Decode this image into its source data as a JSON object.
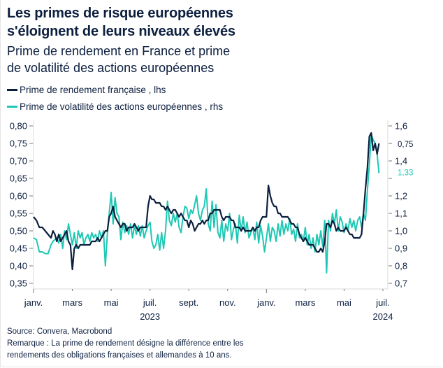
{
  "header": {
    "title_line1": "Les primes de risque européennes",
    "title_line2": "s'éloignent de leurs niveaux élevés",
    "subtitle_line1": "Prime de rendement en France et prime",
    "subtitle_line2": "de volatilité des actions européennes"
  },
  "footer": {
    "source": "Source: Convera, Macrobond",
    "note_line1": "Remarque : La prime de rendement désigne la différence entre les",
    "note_line2": "rendements des obligations françaises et allemandes à 10 ans."
  },
  "colors": {
    "navy": "#0c1f3f",
    "teal": "#1ec8b4"
  },
  "chart_data": {
    "type": "line",
    "title": "Les primes de risque européennes s'éloignent de leurs niveaux élevés",
    "subtitle": "Prime de rendement en France et prime de volatilité des actions européennes",
    "xlabel": "",
    "x_unit": "months since January 2023",
    "x_range": [
      0,
      18.2
    ],
    "x_ticks": [
      {
        "pos": 0,
        "label": "janv."
      },
      {
        "pos": 2,
        "label": "mars"
      },
      {
        "pos": 4,
        "label": "mai"
      },
      {
        "pos": 6,
        "label": "juil."
      },
      {
        "pos": 8,
        "label": "sept."
      },
      {
        "pos": 10,
        "label": "nov."
      },
      {
        "pos": 12,
        "label": "janv."
      },
      {
        "pos": 14,
        "label": "mars"
      },
      {
        "pos": 16,
        "label": "mai"
      },
      {
        "pos": 18,
        "label": "juil."
      }
    ],
    "year_labels": [
      {
        "pos": 6,
        "label": "2023"
      },
      {
        "pos": 18,
        "label": "2024"
      }
    ],
    "y_left": {
      "label": "lhs",
      "range": [
        0.35,
        0.8
      ],
      "ticks": [
        "0,80",
        "0,75",
        "0,70",
        "0,65",
        "0,60",
        "0,55",
        "0,50",
        "0,45",
        "0,40",
        "0,35"
      ],
      "tick_values": [
        0.8,
        0.75,
        0.7,
        0.65,
        0.6,
        0.55,
        0.5,
        0.45,
        0.4,
        0.35
      ]
    },
    "y_right": {
      "label": "rhs",
      "range": [
        0.7,
        1.6
      ],
      "ticks": [
        "1,6",
        "",
        "1,4",
        "",
        "1,2",
        "1,1",
        "1,0",
        "0,9",
        "0,8",
        "0,7"
      ],
      "tick_values": [
        1.6,
        1.5,
        1.4,
        1.3,
        1.2,
        1.1,
        1.0,
        0.9,
        0.8,
        0.7
      ]
    },
    "grid": false,
    "legend_position": "top-left",
    "series": [
      {
        "name": "Prime de rendement française , lhs",
        "axis": "left",
        "color": "#0c1f3f",
        "last_value_label": "0,75",
        "x": [
          0,
          0.15,
          0.3,
          0.45,
          0.6,
          0.75,
          0.9,
          1.0,
          1.1,
          1.2,
          1.3,
          1.4,
          1.5,
          1.6,
          1.7,
          1.8,
          1.9,
          2.0,
          2.1,
          2.2,
          2.3,
          2.4,
          2.5,
          2.6,
          2.7,
          2.8,
          2.9,
          3.0,
          3.1,
          3.2,
          3.3,
          3.4,
          3.5,
          3.6,
          3.7,
          3.8,
          3.9,
          4.0,
          4.1,
          4.2,
          4.3,
          4.4,
          4.5,
          4.6,
          4.7,
          4.8,
          4.9,
          5.0,
          5.1,
          5.2,
          5.3,
          5.4,
          5.5,
          5.6,
          5.7,
          5.8,
          5.9,
          6.0,
          6.1,
          6.2,
          6.3,
          6.4,
          6.5,
          6.6,
          6.7,
          6.8,
          6.9,
          7.0,
          7.1,
          7.2,
          7.3,
          7.4,
          7.5,
          7.6,
          7.7,
          7.8,
          7.9,
          8.0,
          8.1,
          8.2,
          8.3,
          8.4,
          8.5,
          8.6,
          8.7,
          8.8,
          8.9,
          9.0,
          9.1,
          9.2,
          9.3,
          9.4,
          9.5,
          9.6,
          9.7,
          9.8,
          9.9,
          10.0,
          10.1,
          10.2,
          10.3,
          10.4,
          10.5,
          10.6,
          10.7,
          10.8,
          10.9,
          11.0,
          11.1,
          11.2,
          11.3,
          11.4,
          11.5,
          11.6,
          11.7,
          11.8,
          11.9,
          12.0,
          12.1,
          12.2,
          12.3,
          12.4,
          12.5,
          12.6,
          12.7,
          12.8,
          12.9,
          13.0,
          13.1,
          13.2,
          13.3,
          13.4,
          13.5,
          13.6,
          13.7,
          13.8,
          13.9,
          14.0,
          14.1,
          14.2,
          14.3,
          14.4,
          14.5,
          14.6,
          14.7,
          14.8,
          14.9,
          15.0,
          15.1,
          15.2,
          15.3,
          15.4,
          15.5,
          15.6,
          15.7,
          15.8,
          15.9,
          16.0,
          16.1,
          16.2,
          16.3,
          16.4,
          16.5,
          16.6,
          16.7,
          16.8,
          16.9,
          17.0,
          17.1,
          17.2,
          17.3,
          17.4,
          17.5,
          17.6,
          17.7,
          17.8
        ],
        "values": [
          0.54,
          0.53,
          0.51,
          0.51,
          0.5,
          0.49,
          0.48,
          0.5,
          0.49,
          0.47,
          0.49,
          0.47,
          0.48,
          0.49,
          0.5,
          0.47,
          0.46,
          0.39,
          0.45,
          0.46,
          0.45,
          0.46,
          0.46,
          0.46,
          0.46,
          0.46,
          0.46,
          0.47,
          0.47,
          0.47,
          0.48,
          0.47,
          0.48,
          0.49,
          0.5,
          0.5,
          0.54,
          0.55,
          0.57,
          0.54,
          0.53,
          0.52,
          0.51,
          0.52,
          0.52,
          0.5,
          0.51,
          0.51,
          0.51,
          0.52,
          0.51,
          0.5,
          0.51,
          0.51,
          0.51,
          0.51,
          0.57,
          0.6,
          0.59,
          0.59,
          0.58,
          0.58,
          0.58,
          0.57,
          0.57,
          0.56,
          0.57,
          0.56,
          0.55,
          0.56,
          0.56,
          0.55,
          0.54,
          0.55,
          0.54,
          0.53,
          0.53,
          0.51,
          0.53,
          0.52,
          0.5,
          0.51,
          0.52,
          0.52,
          0.53,
          0.52,
          0.53,
          0.53,
          0.55,
          0.55,
          0.56,
          0.56,
          0.56,
          0.56,
          0.54,
          0.53,
          0.54,
          0.54,
          0.54,
          0.53,
          0.53,
          0.51,
          0.51,
          0.51,
          0.5,
          0.51,
          0.5,
          0.5,
          0.5,
          0.5,
          0.51,
          0.5,
          0.51,
          0.51,
          0.53,
          0.54,
          0.54,
          0.54,
          0.63,
          0.6,
          0.58,
          0.57,
          0.57,
          0.55,
          0.55,
          0.54,
          0.54,
          0.54,
          0.54,
          0.53,
          0.52,
          0.52,
          0.51,
          0.51,
          0.49,
          0.48,
          0.47,
          0.48,
          0.47,
          0.46,
          0.46,
          0.46,
          0.45,
          0.44,
          0.44,
          0.45,
          0.44,
          0.47,
          0.52,
          0.52,
          0.51,
          0.53,
          0.52,
          0.5,
          0.51,
          0.5,
          0.5,
          0.5,
          0.51,
          0.5,
          0.49,
          0.49,
          0.48,
          0.48,
          0.48,
          0.48,
          0.49,
          0.55,
          0.62,
          0.68,
          0.77,
          0.78,
          0.73,
          0.75,
          0.72,
          0.75
        ]
      },
      {
        "name": "Prime de volatilité des actions européennes , rhs",
        "axis": "right",
        "color": "#1ec8b4",
        "last_value_label": "1,33",
        "x": [
          0,
          0.15,
          0.3,
          0.45,
          0.6,
          0.75,
          0.9,
          1.0,
          1.1,
          1.2,
          1.3,
          1.4,
          1.5,
          1.6,
          1.7,
          1.8,
          1.9,
          2.0,
          2.1,
          2.2,
          2.3,
          2.4,
          2.5,
          2.6,
          2.7,
          2.8,
          2.9,
          3.0,
          3.1,
          3.2,
          3.3,
          3.4,
          3.5,
          3.6,
          3.7,
          3.8,
          3.9,
          4.0,
          4.1,
          4.2,
          4.3,
          4.4,
          4.5,
          4.6,
          4.7,
          4.8,
          4.9,
          5.0,
          5.1,
          5.2,
          5.3,
          5.4,
          5.5,
          5.6,
          5.7,
          5.8,
          5.9,
          6.0,
          6.1,
          6.2,
          6.3,
          6.4,
          6.5,
          6.6,
          6.7,
          6.8,
          6.9,
          7.0,
          7.1,
          7.2,
          7.3,
          7.4,
          7.5,
          7.6,
          7.7,
          7.8,
          7.9,
          8.0,
          8.1,
          8.2,
          8.3,
          8.4,
          8.5,
          8.6,
          8.7,
          8.8,
          8.9,
          9.0,
          9.1,
          9.2,
          9.3,
          9.4,
          9.5,
          9.6,
          9.7,
          9.8,
          9.9,
          10.0,
          10.1,
          10.2,
          10.3,
          10.4,
          10.5,
          10.6,
          10.7,
          10.8,
          10.9,
          11.0,
          11.1,
          11.2,
          11.3,
          11.4,
          11.5,
          11.6,
          11.7,
          11.8,
          11.9,
          12.0,
          12.1,
          12.2,
          12.3,
          12.4,
          12.5,
          12.6,
          12.7,
          12.8,
          12.9,
          13.0,
          13.1,
          13.2,
          13.3,
          13.4,
          13.5,
          13.6,
          13.7,
          13.8,
          13.9,
          14.0,
          14.1,
          14.2,
          14.3,
          14.4,
          14.5,
          14.6,
          14.7,
          14.8,
          14.9,
          15.0,
          15.1,
          15.2,
          15.3,
          15.4,
          15.5,
          15.6,
          15.7,
          15.8,
          15.9,
          16.0,
          16.1,
          16.2,
          16.3,
          16.4,
          16.5,
          16.6,
          16.7,
          16.8,
          16.9,
          17.0,
          17.1,
          17.2,
          17.3,
          17.4,
          17.5,
          17.6,
          17.7,
          17.8
        ],
        "values": [
          0.96,
          0.95,
          0.88,
          0.88,
          0.87,
          0.87,
          0.92,
          0.94,
          0.95,
          0.96,
          0.93,
          0.98,
          0.9,
          1.0,
          0.95,
          1.04,
          0.98,
          0.92,
          0.99,
          0.9,
          1.0,
          0.96,
          0.99,
          0.92,
          0.96,
          0.98,
          0.94,
          0.99,
          0.96,
          0.98,
          0.94,
          1.0,
          0.96,
          1.0,
          0.8,
          0.98,
          1.1,
          1.22,
          1.04,
          1.19,
          1.1,
          1.08,
          0.95,
          1.05,
          0.99,
          1.03,
          0.98,
          1.04,
          0.96,
          1.03,
          0.98,
          1.03,
          0.97,
          1.03,
          0.96,
          1.0,
          1.03,
          1.05,
          0.94,
          0.9,
          0.92,
          0.98,
          0.89,
          0.99,
          0.9,
          1.0,
          1.17,
          1.06,
          1.03,
          1.1,
          1.05,
          1.1,
          1.02,
          0.99,
          1.08,
          1.14,
          1.13,
          1.07,
          1.12,
          1.1,
          1.15,
          1.2,
          1.1,
          1.06,
          1.12,
          1.14,
          1.24,
          1.04,
          1.0,
          1.17,
          1.02,
          1.15,
          0.99,
          0.96,
          1.06,
          0.94,
          1.04,
          1.0,
          1.1,
          0.95,
          1.01,
          1.04,
          0.93,
          1.09,
          1.0,
          1.08,
          0.99,
          1.05,
          0.96,
          0.99,
          1.02,
          0.95,
          1.05,
          0.93,
          1.03,
          0.97,
          0.88,
          0.96,
          1.04,
          0.94,
          1.02,
          1.0,
          0.94,
          1.04,
          0.97,
          1.06,
          0.98,
          1.04,
          1.0,
          1.07,
          0.98,
          1.01,
          0.94,
          1.04,
          0.96,
          0.98,
          0.94,
          1.02,
          0.92,
          0.98,
          0.9,
          0.96,
          0.88,
          0.98,
          0.92,
          1.0,
          0.91,
          1.06,
          0.76,
          1.06,
          1.0,
          1.1,
          1.04,
          1.12,
          1.0,
          1.08,
          1.05,
          0.99,
          1.04,
          1.0,
          1.07,
          1.02,
          1.06,
          1.0,
          1.06,
          1.08,
          1.02,
          1.1,
          1.06,
          1.23,
          1.38,
          1.55,
          1.52,
          1.5,
          1.44,
          1.33
        ]
      }
    ]
  }
}
